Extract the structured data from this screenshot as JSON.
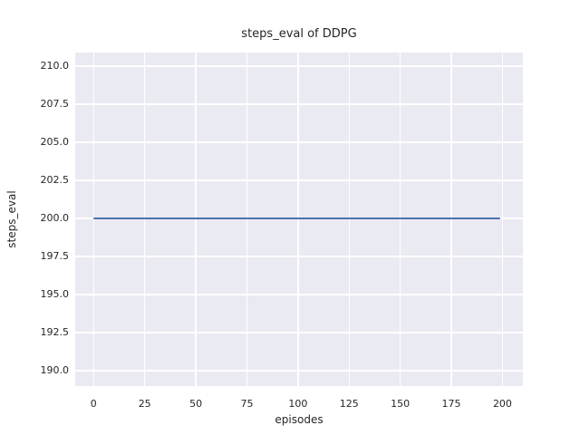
{
  "chart_data": {
    "type": "line",
    "title": "steps_eval of DDPG",
    "xlabel": "episodes",
    "ylabel": "steps_eval",
    "xlim": [
      -9,
      210
    ],
    "ylim": [
      189.0,
      210.9
    ],
    "xticks": [
      0,
      25,
      50,
      75,
      100,
      125,
      150,
      175,
      200
    ],
    "xtick_labels": [
      "0",
      "25",
      "50",
      "75",
      "100",
      "125",
      "150",
      "175",
      "200"
    ],
    "yticks": [
      190.0,
      192.5,
      195.0,
      197.5,
      200.0,
      202.5,
      205.0,
      207.5,
      210.0
    ],
    "ytick_labels": [
      "190.0",
      "192.5",
      "195.0",
      "197.5",
      "200.0",
      "202.5",
      "205.0",
      "207.5",
      "210.0"
    ],
    "grid": true,
    "legend_position": "none",
    "series": [
      {
        "x": [
          0,
          199
        ],
        "y": [
          200,
          200
        ],
        "color": "#4C72B0",
        "description": "constant line at steps_eval = 200 for all episodes 0-199"
      }
    ]
  },
  "colors": {
    "figure_background": "#ffffff",
    "plot_background": "#EAEAF2",
    "gridline": "#ffffff",
    "text": "#262626",
    "line": "#4C72B0"
  }
}
